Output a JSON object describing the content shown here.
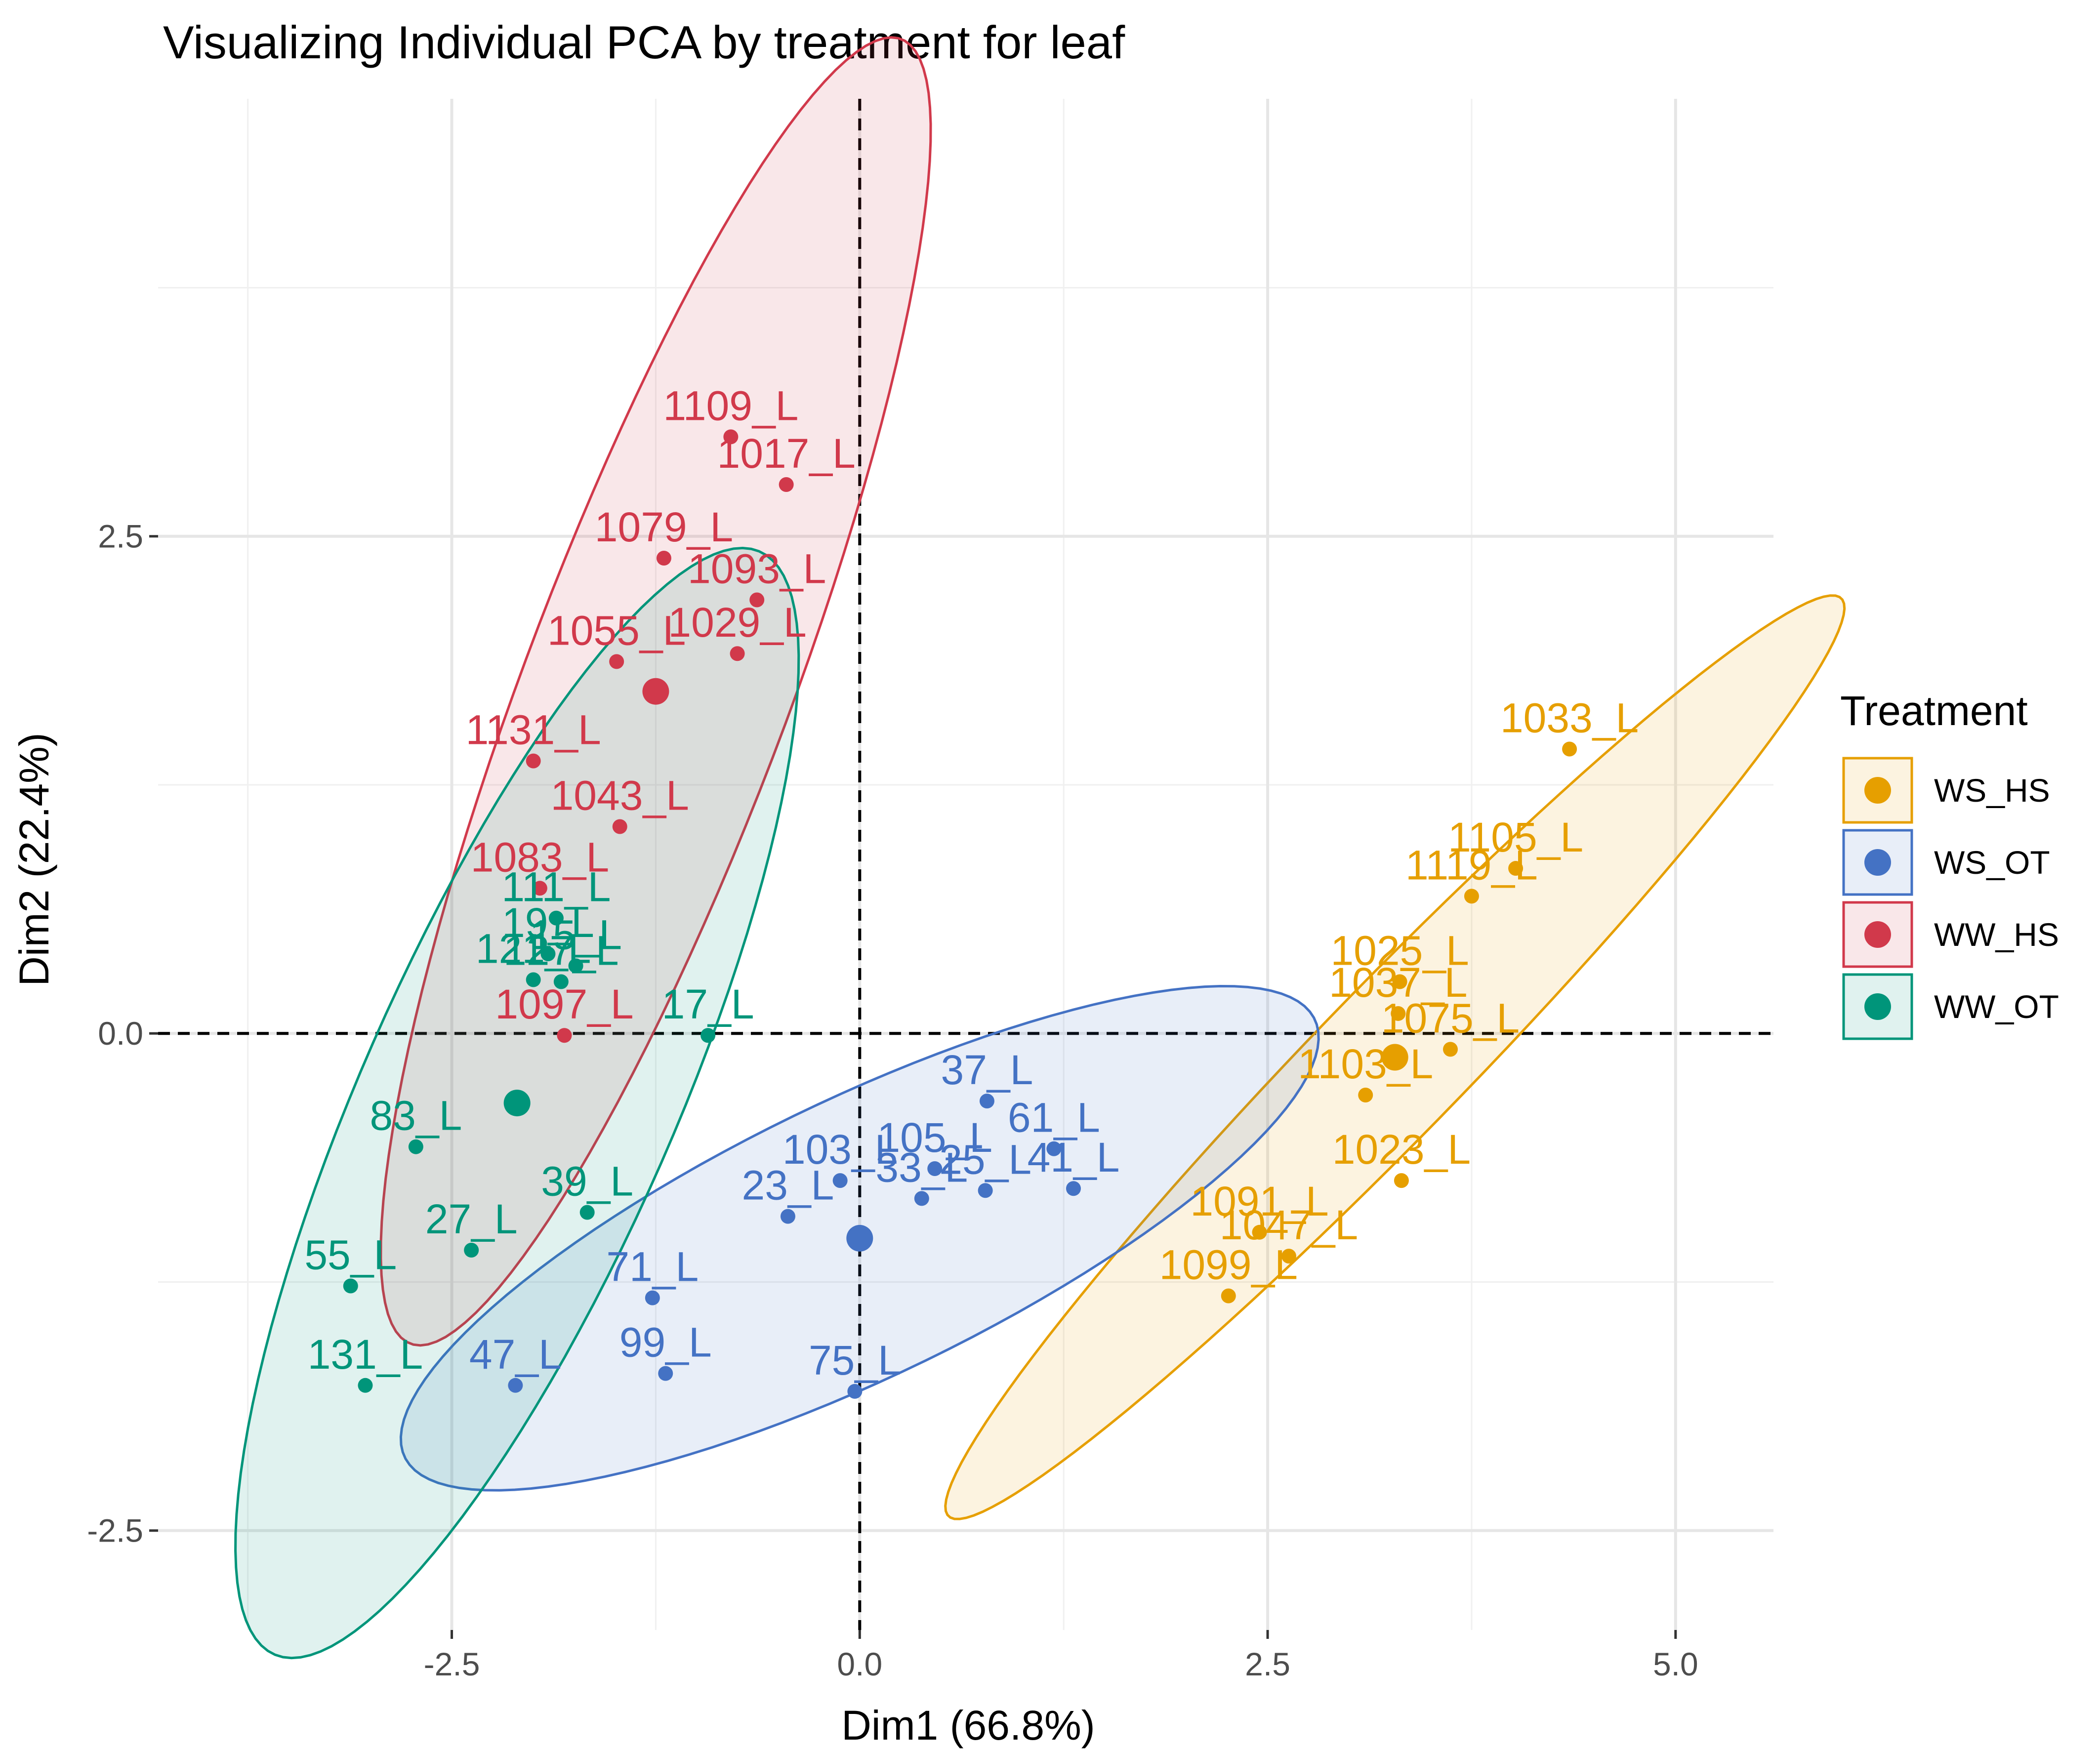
{
  "chart_data": {
    "type": "scatter",
    "title": "Visualizing Individual PCA by treatment for leaf",
    "xlabel": "Dim1 (66.8%)",
    "ylabel": "Dim2 (22.4%)",
    "xlim": [
      -4.3,
      5.6
    ],
    "ylim": [
      -3.0,
      4.7
    ],
    "x_ticks": [
      -2.5,
      0.0,
      2.5,
      5.0
    ],
    "x_tick_labels": [
      "-2.5",
      "0.0",
      "2.5",
      "5.0"
    ],
    "y_ticks": [
      -2.5,
      0.0,
      2.5
    ],
    "y_tick_labels": [
      "-2.5",
      "0.0",
      "2.5"
    ],
    "grid": true,
    "reference_lines": {
      "x": 0,
      "y": 0,
      "style": "dashed"
    },
    "legend": {
      "title": "Treatment",
      "placement": "right",
      "items": [
        "WS_HS",
        "WS_OT",
        "WW_HS",
        "WW_OT"
      ]
    },
    "series": [
      {
        "name": "WS_HS",
        "color": "#E69F00",
        "centroid": [
          3.28,
          -0.12
        ],
        "ellipse": {
          "center": [
            3.28,
            -0.12
          ],
          "semi_axes": [
            3.58,
            0.41
          ],
          "rotation_deg": 40
        },
        "points": [
          {
            "label": "1033_L",
            "x": 4.35,
            "y": 1.43
          },
          {
            "label": "1105_L",
            "x": 4.02,
            "y": 0.83
          },
          {
            "label": "1119_L",
            "x": 3.75,
            "y": 0.69
          },
          {
            "label": "1025_L",
            "x": 3.31,
            "y": 0.26
          },
          {
            "label": "1037_L",
            "x": 3.3,
            "y": 0.1
          },
          {
            "label": "1075_L",
            "x": 3.62,
            "y": -0.08
          },
          {
            "label": "1103_L",
            "x": 3.1,
            "y": -0.31
          },
          {
            "label": "1023_L",
            "x": 3.32,
            "y": -0.74
          },
          {
            "label": "1091_L",
            "x": 2.45,
            "y": -1.0
          },
          {
            "label": "1047_L",
            "x": 2.63,
            "y": -1.12
          },
          {
            "label": "1099_L",
            "x": 2.26,
            "y": -1.32
          }
        ]
      },
      {
        "name": "WS_OT",
        "color": "#4472C4",
        "centroid": [
          0.0,
          -1.03
        ],
        "ellipse": {
          "center": [
            0.0,
            -1.03
          ],
          "semi_axes": [
            3.0,
            0.72
          ],
          "rotation_deg": 21
        },
        "points": [
          {
            "label": "37_L",
            "x": 0.78,
            "y": -0.34
          },
          {
            "label": "61_L",
            "x": 1.19,
            "y": -0.58
          },
          {
            "label": "103_L",
            "x": -0.12,
            "y": -0.74
          },
          {
            "label": "105_L",
            "x": 0.46,
            "y": -0.68
          },
          {
            "label": "33_L",
            "x": 0.38,
            "y": -0.83
          },
          {
            "label": "25_L",
            "x": 0.77,
            "y": -0.79
          },
          {
            "label": "41_L",
            "x": 1.31,
            "y": -0.78
          },
          {
            "label": "23_L",
            "x": -0.44,
            "y": -0.92
          },
          {
            "label": "71_L",
            "x": -1.27,
            "y": -1.33
          },
          {
            "label": "99_L",
            "x": -1.19,
            "y": -1.71
          },
          {
            "label": "75_L",
            "x": -0.03,
            "y": -1.8
          },
          {
            "label": "47_L",
            "x": -2.11,
            "y": -1.77
          }
        ]
      },
      {
        "name": "WW_HS",
        "color": "#D1394B",
        "centroid": [
          -1.25,
          1.72
        ],
        "ellipse": {
          "center": [
            -1.25,
            1.72
          ],
          "semi_axes": [
            3.61,
            0.79
          ],
          "rotation_deg": 65
        },
        "points": [
          {
            "label": "1109_L",
            "x": -0.79,
            "y": 3.0
          },
          {
            "label": "1017_L",
            "x": -0.45,
            "y": 2.76
          },
          {
            "label": "1079_L",
            "x": -1.2,
            "y": 2.39
          },
          {
            "label": "1093_L",
            "x": -0.63,
            "y": 2.18
          },
          {
            "label": "1055_L",
            "x": -1.49,
            "y": 1.87
          },
          {
            "label": "1029_L",
            "x": -0.75,
            "y": 1.91
          },
          {
            "label": "1131_L",
            "x": -2.0,
            "y": 1.37
          },
          {
            "label": "1043_L",
            "x": -1.47,
            "y": 1.04
          },
          {
            "label": "1083_L",
            "x": -1.96,
            "y": 0.73
          },
          {
            "label": "1097_L",
            "x": -1.81,
            "y": -0.01
          }
        ]
      },
      {
        "name": "WW_OT",
        "color": "#00957A",
        "centroid": [
          -2.1,
          -0.35
        ],
        "ellipse": {
          "center": [
            -2.1,
            -0.35
          ],
          "semi_axes": [
            3.15,
            0.92
          ],
          "rotation_deg": 61
        },
        "points": [
          {
            "label": "111_L",
            "x": -1.86,
            "y": 0.58
          },
          {
            "label": "19_L",
            "x": -1.91,
            "y": 0.4
          },
          {
            "label": "127_L",
            "x": -1.83,
            "y": 0.26
          },
          {
            "label": "15_L",
            "x": -1.74,
            "y": 0.34
          },
          {
            "label": "121_L",
            "x": -2.0,
            "y": 0.27
          },
          {
            "label": "17_L",
            "x": -0.93,
            "y": -0.01
          },
          {
            "label": "83_L",
            "x": -2.72,
            "y": -0.57
          },
          {
            "label": "39_L",
            "x": -1.67,
            "y": -0.9
          },
          {
            "label": "27_L",
            "x": -2.38,
            "y": -1.09
          },
          {
            "label": "55_L",
            "x": -3.12,
            "y": -1.27
          },
          {
            "label": "131_L",
            "x": -3.03,
            "y": -1.77
          }
        ]
      }
    ]
  }
}
